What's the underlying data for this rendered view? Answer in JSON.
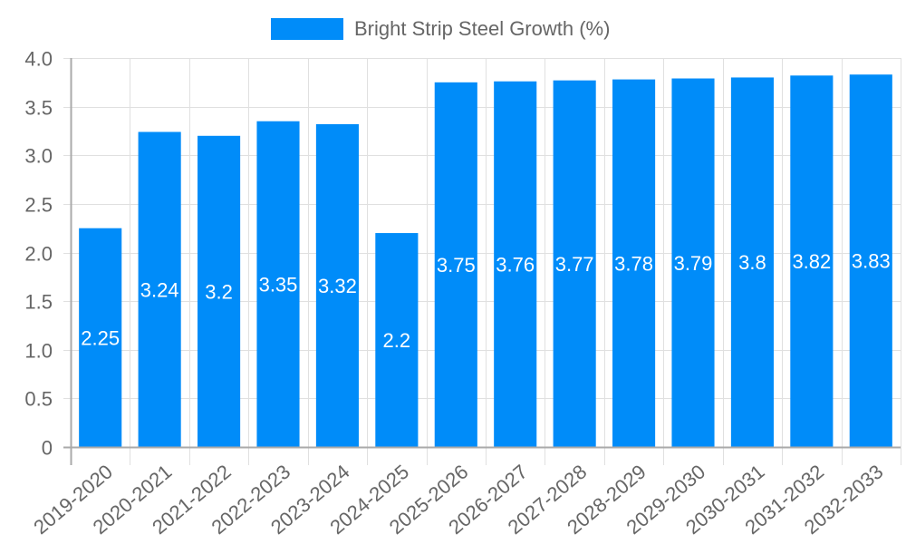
{
  "chart_data": {
    "type": "bar",
    "title": "",
    "xlabel": "",
    "ylabel": "",
    "ylim": [
      0,
      4.0
    ],
    "yticks": [
      "0",
      "0.5",
      "1.0",
      "1.5",
      "2.0",
      "2.5",
      "3.0",
      "3.5",
      "4.0"
    ],
    "grid": true,
    "legend_position": "top",
    "categories": [
      "2019-2020",
      "2020-2021",
      "2021-2022",
      "2022-2023",
      "2023-2024",
      "2024-2025",
      "2025-2026",
      "2026-2027",
      "2027-2028",
      "2028-2029",
      "2029-2030",
      "2030-2031",
      "2031-2032",
      "2032-2033"
    ],
    "series": [
      {
        "name": "Bright Strip Steel Growth (%)",
        "color": "#008cf9",
        "values": [
          2.25,
          3.24,
          3.2,
          3.35,
          3.32,
          2.2,
          3.75,
          3.76,
          3.77,
          3.78,
          3.79,
          3.8,
          3.82,
          3.83
        ],
        "data_labels": [
          "2.25",
          "3.24",
          "3.2",
          "3.35",
          "3.32",
          "2.2",
          "3.75",
          "3.76",
          "3.77",
          "3.78",
          "3.79",
          "3.8",
          "3.82",
          "3.83"
        ]
      }
    ]
  },
  "legend": {
    "label": "Bright Strip Steel Growth (%)",
    "color": "#008cf9"
  },
  "colors": {
    "grid": "#e0e0e0",
    "axis": "#aaaaaa",
    "tick_text": "#666666",
    "data_label": "#ffffff"
  }
}
